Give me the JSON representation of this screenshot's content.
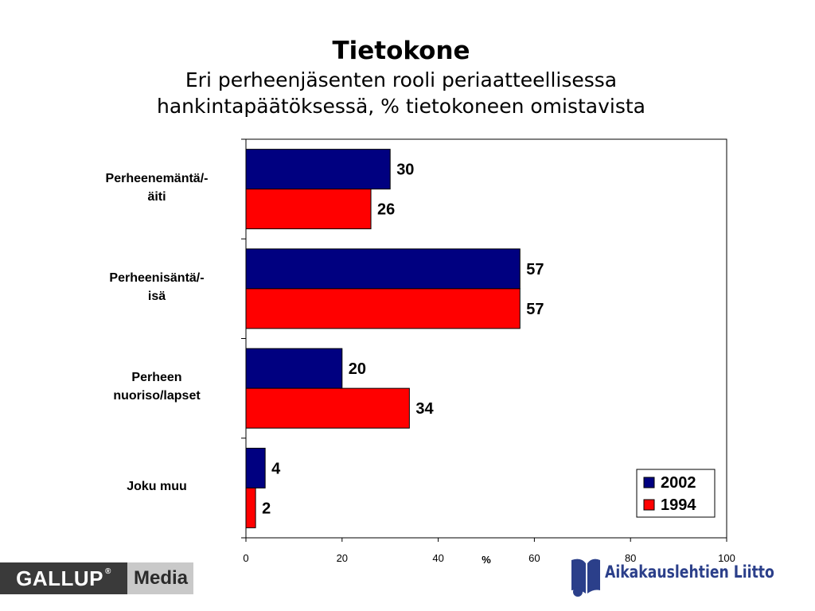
{
  "title": "Tietokone",
  "subtitle_line1": "Eri perheenjäsenten rooli periaatteellisessa",
  "subtitle_line2": "hankintapäätöksessä, % tietokoneen omistavista",
  "chart_data": {
    "type": "bar",
    "orientation": "horizontal",
    "categories": [
      "Perheenemäntä/-äiti",
      "Perheenisäntä/-isä",
      "Perheen nuoriso/lapset",
      "Joku muu"
    ],
    "category_label_lines": [
      [
        "Perheenemäntä/-",
        "äiti"
      ],
      [
        "Perheenisäntä/-",
        "isä"
      ],
      [
        "Perheen",
        "nuoriso/lapset"
      ],
      [
        "Joku muu"
      ]
    ],
    "series": [
      {
        "name": "2002",
        "color": "#000080",
        "values": [
          30,
          57,
          20,
          4
        ]
      },
      {
        "name": "1994",
        "color": "#ff0000",
        "values": [
          26,
          57,
          34,
          2
        ]
      }
    ],
    "xlabel": "%",
    "xlim": [
      0,
      100
    ],
    "xticks": [
      0,
      20,
      40,
      60,
      80,
      100
    ],
    "data_labels": true,
    "legend_position": "bottom-right",
    "grid": false
  },
  "logos": {
    "gallup_word": "GALLUP",
    "gallup_reg": "®",
    "media_word": "Media",
    "liitto_text": "Aikakauslehtien Liitto"
  }
}
